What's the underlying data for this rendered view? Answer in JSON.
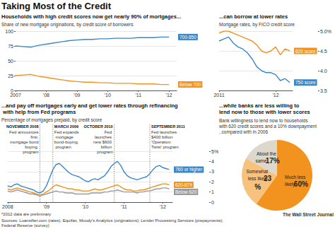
{
  "title": "Taking Most of the Credit",
  "footnote": "*2012 data are preliminary",
  "sources": "Sources: Loansifter.com (rates); Equifax, Moody's Analytics (originations); Lender Processing Services (prepayments); Federal Reserve (survey)",
  "credit": "The Wall Street Journal",
  "chart_data": [
    {
      "type": "line",
      "title": "Households with high credit scores now get nearly 90% of mortgages...",
      "subtitle": "Share of new mortgage originations, by credit score of borrowers",
      "x": [
        2007,
        2007.25,
        2007.5,
        2007.75,
        2008,
        2008.25,
        2008.5,
        2008.75,
        2009,
        2009.25,
        2009.5,
        2009.75,
        2010,
        2010.25,
        2010.5,
        2010.75,
        2011,
        2011.25,
        2011.5,
        2011.75,
        2012
      ],
      "xlim": [
        2007,
        2012.25
      ],
      "xticks": [
        2007,
        {
          "value": 2008,
          "label": "'08"
        },
        {
          "value": 2009,
          "label": "'09"
        },
        {
          "value": 2010,
          "label": "'10"
        },
        {
          "value": 2011,
          "label": "'11"
        },
        {
          "value": 2012,
          "label": "'12"
        }
      ],
      "ylim": [
        0,
        100
      ],
      "yticks": [
        0,
        25,
        50,
        75,
        100
      ],
      "grid": true,
      "series": [
        {
          "name": "700-850",
          "color": "#3a87c8",
          "values": [
            75,
            74,
            73,
            76,
            78,
            80,
            82,
            84,
            85,
            86,
            86,
            87,
            87,
            88,
            88,
            88,
            89,
            89,
            89,
            90,
            90
          ]
        },
        {
          "name": "Below 700",
          "color": "#f2931f",
          "values": [
            25,
            26,
            27,
            24,
            22,
            20,
            18,
            16,
            15,
            14,
            14,
            13,
            13,
            12,
            12,
            12,
            11,
            11,
            11,
            10,
            10
          ]
        }
      ]
    },
    {
      "type": "line",
      "title": "...can borrow at lower rates",
      "subtitle": "Mortgage rates, by FICO credit score",
      "x": [
        2011,
        2011.083,
        2011.167,
        2011.25,
        2011.333,
        2011.417,
        2011.5,
        2011.583,
        2011.667,
        2011.75,
        2011.833,
        2011.917,
        2012,
        2012.083,
        2012.167,
        2012.25
      ],
      "xlim": [
        2011,
        2012.3
      ],
      "xticks": [
        2011,
        {
          "value": 2012,
          "label": "'12"
        }
      ],
      "ylim": [
        3.5,
        5
      ],
      "yticks": [
        3.5,
        {
          "value": 4,
          "label": "4.0"
        },
        4.5,
        {
          "value": 5,
          "label": "5.0%"
        }
      ],
      "grid": true,
      "series": [
        {
          "name": "620 score",
          "color": "#f2931f",
          "values": [
            4.95,
            5,
            5,
            4.95,
            4.9,
            4.85,
            4.8,
            4.75,
            4.65,
            4.5,
            4.45,
            4.5,
            4.6,
            4.4,
            4.55,
            4.5
          ]
        },
        {
          "name": "750 score",
          "color": "#3a87c8",
          "values": [
            4.75,
            4.8,
            4.85,
            4.7,
            4.6,
            4.55,
            4.45,
            4.3,
            4.1,
            4,
            3.95,
            3.95,
            3.9,
            3.75,
            3.8,
            3.7
          ]
        }
      ]
    },
    {
      "type": "line",
      "title": "...and pay off mortgages early and get lower rates through refinancing with help from Fed programs",
      "subtitle": "Percentage of mortgages prepaid, by credit score",
      "x": [
        2008,
        2008.083,
        2008.167,
        2008.25,
        2008.333,
        2008.417,
        2008.5,
        2008.583,
        2008.667,
        2008.75,
        2008.833,
        2008.917,
        2009,
        2009.083,
        2009.167,
        2009.25,
        2009.333,
        2009.417,
        2009.5,
        2009.583,
        2009.667,
        2009.75,
        2009.833,
        2009.917,
        2010,
        2010.083,
        2010.167,
        2010.25,
        2010.333,
        2010.417,
        2010.5,
        2010.583,
        2010.667,
        2010.75,
        2010.833,
        2010.917,
        2011,
        2011.083,
        2011.167,
        2011.25,
        2011.333,
        2011.417,
        2011.5,
        2011.583,
        2011.667,
        2011.75,
        2011.833,
        2011.917,
        2012,
        2012.083,
        2012.167
      ],
      "xlim": [
        2008,
        2012.25
      ],
      "xticks": [
        2008,
        {
          "value": 2009,
          "label": "'09"
        },
        {
          "value": 2010,
          "label": "'10"
        },
        {
          "value": 2011,
          "label": "'11"
        },
        {
          "value": 2012,
          "label": "'12"
        }
      ],
      "ylim": [
        0,
        5
      ],
      "yticks": [
        0,
        1,
        2,
        3,
        4,
        {
          "value": 5,
          "label": "5%"
        }
      ],
      "grid": true,
      "annotations": [
        {
          "x": 2008.833,
          "date": "NOVEMBER 2008",
          "text": "Fed announces first mortgage bond buying program"
        },
        {
          "x": 2009.167,
          "date": "MARCH 2009",
          "text": "Fed expands mortgage bond-buying program"
        },
        {
          "x": 2010.75,
          "date": "OCTOBER 2010",
          "text": "Fed launches new $600 billion program"
        },
        {
          "x": 2011.667,
          "date": "SEPTEMBER 2011",
          "text": "Fed launches $400 billion 'Operation Twist' program"
        }
      ],
      "series": [
        {
          "name": "760 or higher",
          "color": "#3a87c8",
          "values": [
            1.6,
            1.5,
            1.7,
            1.8,
            1.6,
            1.5,
            1.4,
            1.3,
            1.2,
            1.0,
            0.9,
            1.1,
            1.6,
            2.4,
            3.2,
            3.7,
            3.8,
            3.5,
            3.2,
            2.9,
            2.7,
            2.6,
            2.5,
            2.3,
            2.1,
            2.0,
            2.2,
            2.3,
            2.2,
            2.4,
            2.6,
            3.0,
            3.5,
            3.8,
            4.0,
            3.6,
            3.0,
            2.6,
            2.4,
            2.3,
            2.2,
            2.3,
            2.4,
            2.5,
            2.8,
            3.2,
            3.5,
            3.6,
            3.4,
            3.3,
            3.2
          ]
        },
        {
          "name": "620-679",
          "color": "#f2931f",
          "values": [
            1.3,
            1.2,
            1.3,
            1.4,
            1.3,
            1.2,
            1.1,
            1.0,
            0.9,
            0.8,
            0.7,
            0.8,
            1.0,
            1.2,
            1.5,
            1.7,
            1.6,
            1.5,
            1.4,
            1.3,
            1.3,
            1.2,
            1.2,
            1.1,
            1.1,
            1.1,
            1.2,
            1.3,
            1.2,
            1.2,
            1.3,
            1.4,
            1.5,
            1.6,
            1.7,
            1.5,
            1.3,
            1.2,
            1.2,
            1.1,
            1.1,
            1.2,
            1.2,
            1.3,
            1.4,
            1.5,
            1.6,
            1.7,
            1.8,
            1.8,
            1.7
          ]
        },
        {
          "name": "Below 620",
          "color": "#9b9b9b",
          "values": [
            1.1,
            1.0,
            1.1,
            1.2,
            1.1,
            1.0,
            0.9,
            0.8,
            0.8,
            0.7,
            0.6,
            0.7,
            0.8,
            0.9,
            1.0,
            1.1,
            1.0,
            1.0,
            0.9,
            0.9,
            0.9,
            0.8,
            0.8,
            0.8,
            0.8,
            0.8,
            0.9,
            0.9,
            0.9,
            0.9,
            1.0,
            1.0,
            1.1,
            1.1,
            1.2,
            1.1,
            1.0,
            1.0,
            1.0,
            1.0,
            0.9,
            1.0,
            1.0,
            1.1,
            1.1,
            1.2,
            1.3,
            1.3,
            1.4,
            1.4,
            1.3
          ]
        }
      ]
    },
    {
      "type": "pie",
      "title": "...while banks are less willing to lend now to those with lower scores",
      "subtitle": "Bank willingness to lend now to households with 620 credit scores and a 10% downpayment, compared with in 2006",
      "categories": [
        "Much less likely",
        "Somewhat less likely",
        "About the same"
      ],
      "values": [
        60,
        23,
        17
      ],
      "value_labels": [
        "60%",
        "23%",
        "17%"
      ],
      "colors": [
        "#f2931f",
        "#f7c27d",
        "#dcd8cc"
      ],
      "data_labels": true
    }
  ]
}
